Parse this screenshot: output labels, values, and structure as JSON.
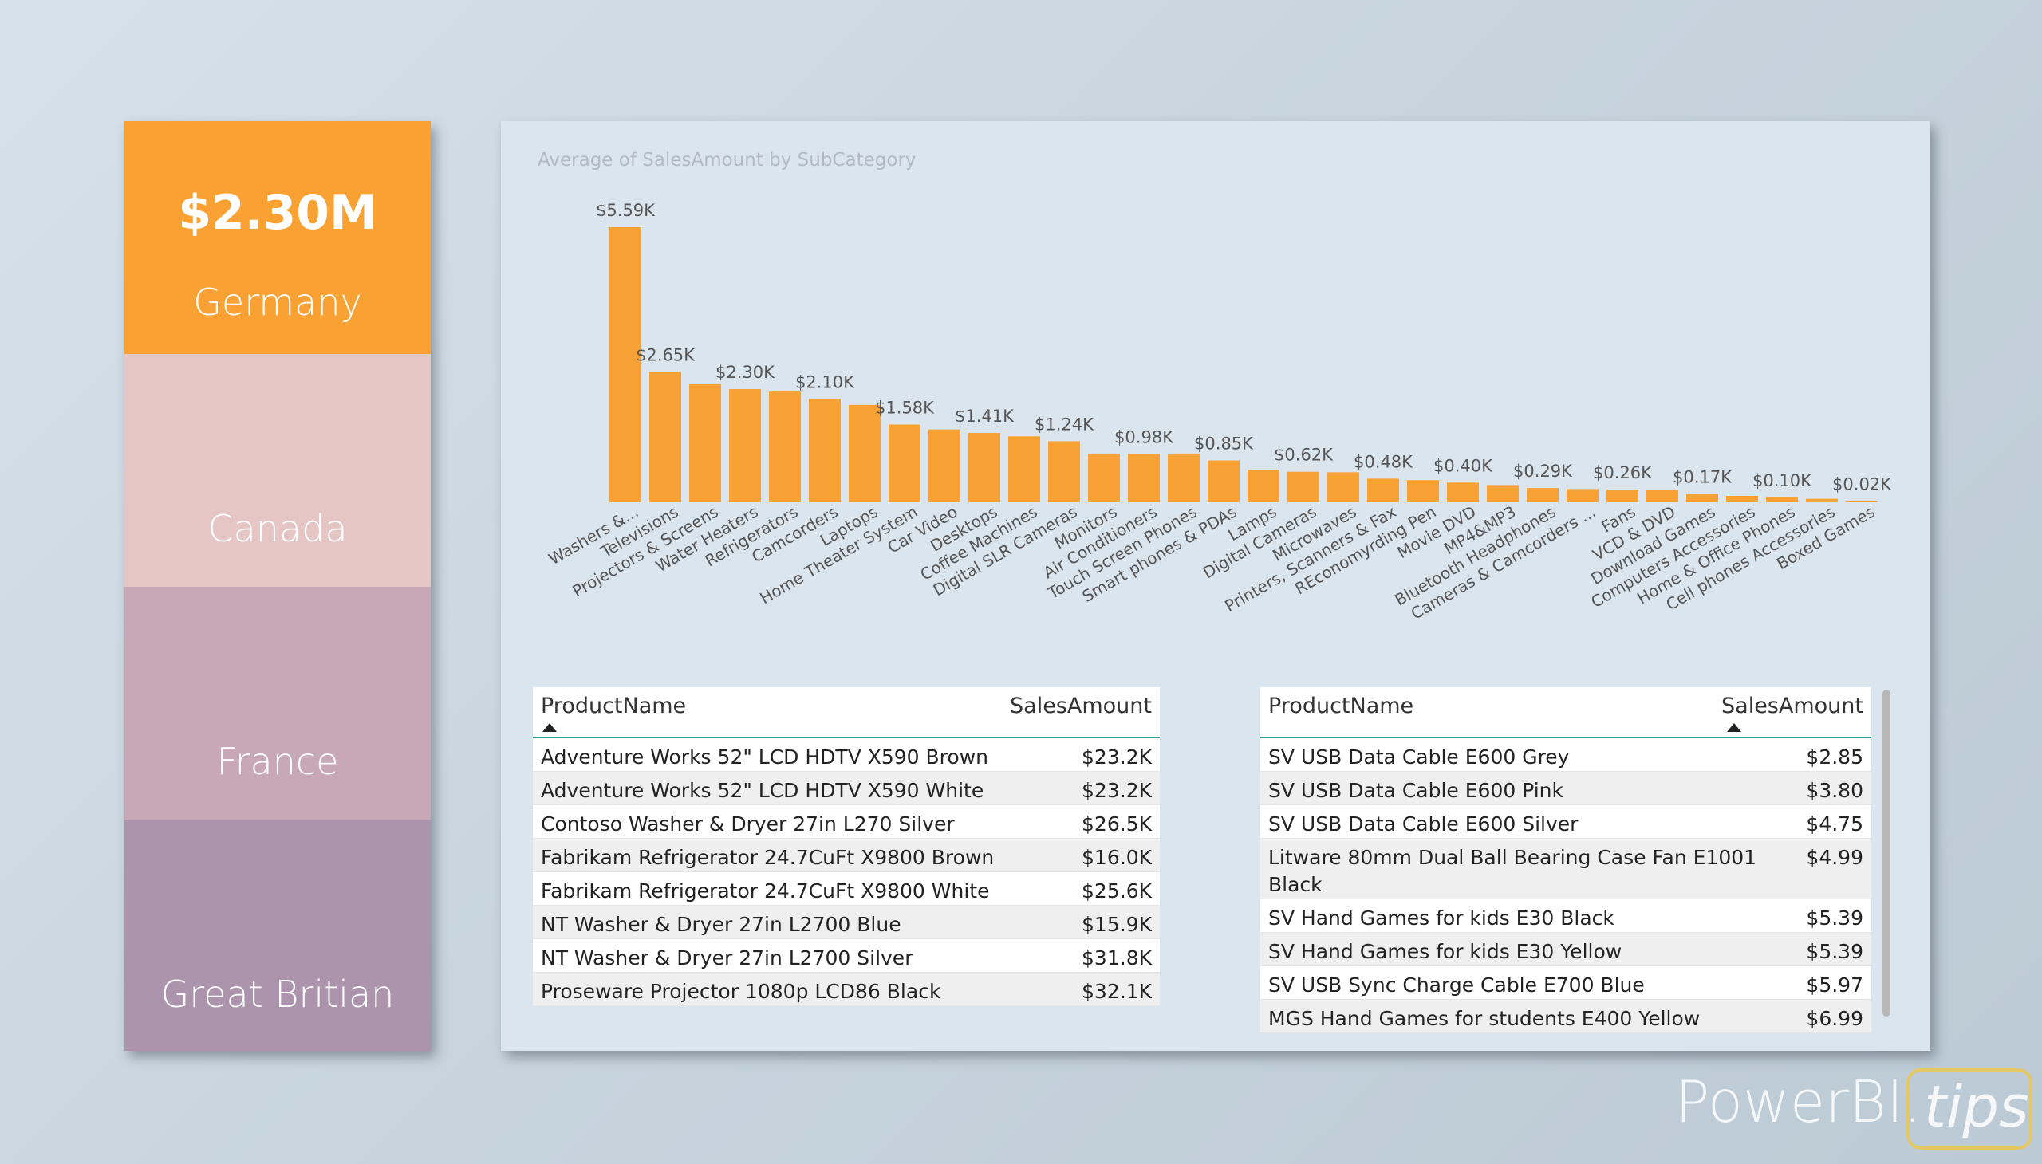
{
  "colors": {
    "accent": "#F8A135",
    "germany": "#F9A133",
    "canada": "#E6C5C5",
    "france": "#C9A8B6",
    "great_britain": "#AB94AC",
    "card_bg": "#DBE5EE",
    "table_header_line": "#2A9D8F"
  },
  "slicer": {
    "germany": {
      "kpi": "$2.30M",
      "name": "Germany"
    },
    "canada": {
      "name": "Canada"
    },
    "france": {
      "name": "France"
    },
    "great_britain": {
      "name": "Great Britian"
    }
  },
  "chart_data": {
    "type": "bar",
    "title": "Average of SalesAmount by SubCategory",
    "categories": [
      "Washers &...",
      "Televisions",
      "Projectors & Screens",
      "Water Heaters",
      "Refrigerators",
      "Camcorders",
      "Laptops",
      "Home Theater System",
      "Car Video",
      "Desktops",
      "Coffee Machines",
      "Digital SLR Cameras",
      "Monitors",
      "Air Conditioners",
      "Touch Screen Phones",
      "Smart phones & PDAs",
      "Lamps",
      "Digital Cameras",
      "Microwaves",
      "Printers, Scanners & Fax",
      "REconomyrding Pen",
      "Movie DVD",
      "MP4&MP3",
      "Bluetooth Headphones",
      "Cameras & Camcorders ...",
      "Fans",
      "VCD & DVD",
      "Download Games",
      "Computers Accessories",
      "Home & Office Phones",
      "Cell phones Accessories",
      "Boxed Games"
    ],
    "values": [
      5.59,
      2.65,
      2.4,
      2.3,
      2.25,
      2.1,
      1.98,
      1.58,
      1.48,
      1.41,
      1.34,
      1.24,
      0.99,
      0.98,
      0.97,
      0.85,
      0.66,
      0.62,
      0.61,
      0.48,
      0.45,
      0.4,
      0.35,
      0.29,
      0.27,
      0.26,
      0.25,
      0.17,
      0.13,
      0.1,
      0.07,
      0.02
    ],
    "labels": [
      "$5.59K",
      "$2.65K",
      "",
      "$2.30K",
      "",
      "$2.10K",
      "",
      "$1.58K",
      "",
      "$1.41K",
      "",
      "$1.24K",
      "",
      "$0.98K",
      "",
      "$0.85K",
      "",
      "$0.62K",
      "",
      "$0.48K",
      "",
      "$0.40K",
      "",
      "$0.29K",
      "",
      "$0.26K",
      "",
      "$0.17K",
      "",
      "$0.10K",
      "",
      "$0.02K"
    ],
    "unit": "$K",
    "ylim": [
      0,
      5.59
    ],
    "grid": false,
    "legend": false
  },
  "table_left": {
    "col_name": "ProductName",
    "col_amount": "SalesAmount",
    "rows": [
      {
        "name": "Adventure Works 52\" LCD HDTV X590 Brown",
        "amount": "$23.2K"
      },
      {
        "name": "Adventure Works 52\" LCD HDTV X590 White",
        "amount": "$23.2K"
      },
      {
        "name": "Contoso Washer & Dryer 27in L270 Silver",
        "amount": "$26.5K"
      },
      {
        "name": "Fabrikam Refrigerator 24.7CuFt X9800 Brown",
        "amount": "$16.0K"
      },
      {
        "name": "Fabrikam Refrigerator 24.7CuFt X9800 White",
        "amount": "$25.6K"
      },
      {
        "name": "NT Washer & Dryer 27in L2700 Blue",
        "amount": "$15.9K"
      },
      {
        "name": "NT Washer & Dryer 27in L2700 Silver",
        "amount": "$31.8K"
      },
      {
        "name": "Proseware Projector 1080p LCD86 Black",
        "amount": "$32.1K"
      }
    ]
  },
  "table_right": {
    "col_name": "ProductName",
    "col_amount": "SalesAmount",
    "rows": [
      {
        "name": "SV USB Data Cable E600 Grey",
        "amount": "$2.85"
      },
      {
        "name": "SV USB Data Cable E600 Pink",
        "amount": "$3.80"
      },
      {
        "name": "SV USB Data Cable E600 Silver",
        "amount": "$4.75"
      },
      {
        "name": "Litware 80mm Dual Ball Bearing Case Fan E1001 Black",
        "amount": "$4.99"
      },
      {
        "name": "SV Hand Games for kids E30 Black",
        "amount": "$5.39"
      },
      {
        "name": "SV Hand Games for kids E30 Yellow",
        "amount": "$5.39"
      },
      {
        "name": "SV USB Sync Charge Cable E700 Blue",
        "amount": "$5.97"
      },
      {
        "name": "MGS Hand Games for students E400 Yellow",
        "amount": "$6.99"
      }
    ]
  },
  "logo": {
    "text_main": "PowerBI.",
    "text_box": "tips"
  }
}
